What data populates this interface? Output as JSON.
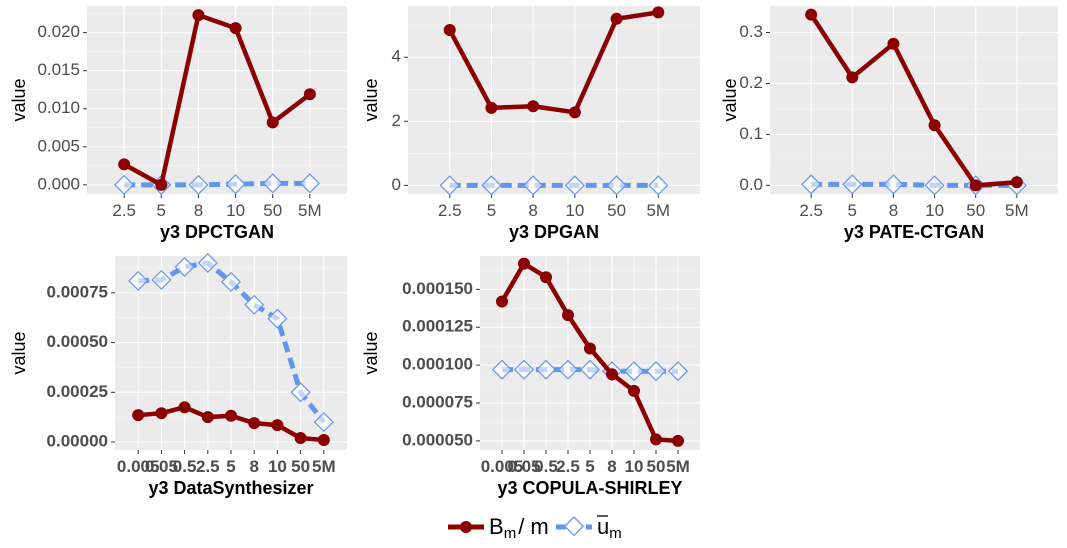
{
  "colors": {
    "bm": "#8b0000",
    "um": "#6495ed"
  },
  "legend": {
    "items": [
      {
        "name": "bm",
        "main": "B",
        "sub": "m",
        "suffix": "/ m"
      },
      {
        "name": "um",
        "main": "u",
        "sub": "m",
        "suffix": ""
      }
    ]
  },
  "chart_data": [
    {
      "type": "line",
      "title": "y3 DPCTGAN",
      "xlabel": "y3 DPCTGAN",
      "ylabel": "value",
      "categories": [
        "2.5",
        "5",
        "8",
        "10",
        "50",
        "5M"
      ],
      "ylim": [
        -0.0012,
        0.0235
      ],
      "yticks": [
        0.0,
        0.005,
        0.01,
        0.015,
        0.02
      ],
      "ytick_labels": [
        "0.000",
        "0.005",
        "0.010",
        "0.015",
        "0.020"
      ],
      "series": [
        {
          "name": "B_m/m",
          "values": [
            0.0027,
            0.0,
            0.0223,
            0.0206,
            0.0082,
            0.0119
          ]
        },
        {
          "name": "u_m",
          "values": [
            0.0,
            0.0,
            0.0,
            0.0001,
            0.0002,
            0.0002
          ]
        }
      ]
    },
    {
      "type": "line",
      "title": "y3 DPGAN",
      "xlabel": "y3 DPGAN",
      "ylabel": "value",
      "categories": [
        "2.5",
        "5",
        "8",
        "10",
        "50",
        "5M"
      ],
      "ylim": [
        -0.27,
        5.6
      ],
      "yticks": [
        0,
        2,
        4
      ],
      "ytick_labels": [
        "0",
        "2",
        "4"
      ],
      "series": [
        {
          "name": "B_m/m",
          "values": [
            4.85,
            2.42,
            2.47,
            2.28,
            5.2,
            5.4
          ]
        },
        {
          "name": "u_m",
          "values": [
            0.0,
            0.0,
            0.0,
            0.0,
            0.0,
            0.0
          ]
        }
      ]
    },
    {
      "type": "line",
      "title": "y3 PATE-CTGAN",
      "xlabel": "y3 PATE-CTGAN",
      "ylabel": "value",
      "categories": [
        "2.5",
        "5",
        "8",
        "10",
        "50",
        "5M"
      ],
      "ylim": [
        -0.017,
        0.352
      ],
      "yticks": [
        0.0,
        0.1,
        0.2,
        0.3
      ],
      "ytick_labels": [
        "0.0",
        "0.1",
        "0.2",
        "0.3"
      ],
      "series": [
        {
          "name": "B_m/m",
          "values": [
            0.335,
            0.212,
            0.278,
            0.118,
            0.0,
            0.006
          ]
        },
        {
          "name": "u_m",
          "values": [
            0.002,
            0.002,
            0.002,
            0.0,
            0.0,
            0.0
          ]
        }
      ]
    },
    {
      "type": "line",
      "title": "y3 DataSynthesizer",
      "xlabel": "y3 DataSynthesizer",
      "ylabel": "value",
      "categories": [
        "0.005",
        "0.05",
        "0.5",
        "2.5",
        "5",
        "8",
        "10",
        "50",
        "5M"
      ],
      "ylim": [
        -4e-05,
        0.000935
      ],
      "yticks": [
        0.0,
        0.00025,
        0.0005,
        0.00075
      ],
      "ytick_labels": [
        "0.00000",
        "0.00025",
        "0.00050",
        "0.00075"
      ],
      "series": [
        {
          "name": "B_m/m",
          "values": [
            0.000135,
            0.000145,
            0.000175,
            0.000125,
            0.000132,
            9.5e-05,
            8.5e-05,
            2e-05,
            1e-05
          ]
        },
        {
          "name": "u_m",
          "values": [
            0.00081,
            0.000815,
            0.00088,
            0.0009,
            0.000805,
            0.00069,
            0.00062,
            0.00025,
            0.0001
          ]
        }
      ]
    },
    {
      "type": "line",
      "title": "y3 COPULA-SHIRLEY",
      "xlabel": "y3 COPULA-SHIRLEY",
      "ylabel": "value",
      "categories": [
        "0.005",
        "0.05",
        "0.5",
        "2.5",
        "5",
        "8",
        "10",
        "50",
        "5M"
      ],
      "ylim": [
        4.4e-05,
        0.000172
      ],
      "yticks": [
        5e-05,
        7.5e-05,
        0.0001,
        0.000125,
        0.00015
      ],
      "ytick_labels": [
        "0.000050",
        "0.000075",
        "0.000100",
        "0.000125",
        "0.000150"
      ],
      "series": [
        {
          "name": "B_m/m",
          "values": [
            0.000142,
            0.000167,
            0.000158,
            0.000133,
            0.000111,
            9.4e-05,
            8.3e-05,
            5.1e-05,
            5e-05
          ]
        },
        {
          "name": "u_m",
          "values": [
            9.7e-05,
            9.7e-05,
            9.7e-05,
            9.7e-05,
            9.7e-05,
            9.6e-05,
            9.6e-05,
            9.6e-05,
            9.6e-05
          ]
        }
      ]
    }
  ]
}
